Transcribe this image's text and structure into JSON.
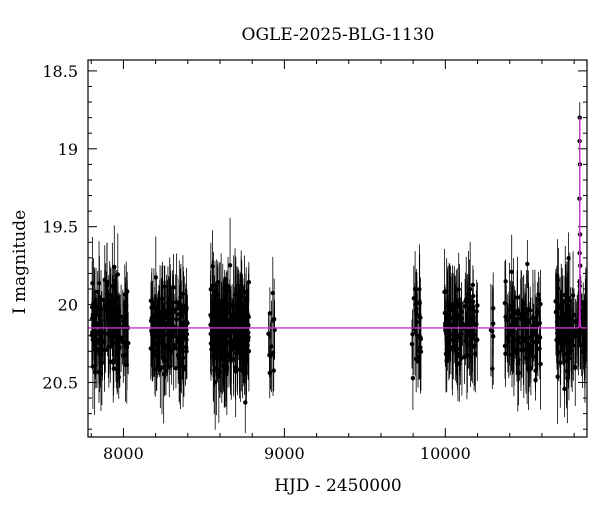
{
  "chart_data": {
    "type": "scatter",
    "title": "OGLE-2025-BLG-1130",
    "xlabel": "HJD - 2450000",
    "ylabel": "I magnitude",
    "xlim": [
      7780,
      10880
    ],
    "ylim": [
      20.85,
      18.43
    ],
    "y_inverted": true,
    "x_ticks": [
      8000,
      9000,
      10000
    ],
    "y_ticks": [
      18.5,
      19,
      19.5,
      20,
      20.5
    ],
    "x_tick_labels": [
      "8000",
      "9000",
      "10000"
    ],
    "y_tick_labels": [
      "18.5",
      "19",
      "19.5",
      "20",
      "20.5"
    ],
    "grid": false,
    "colors": {
      "points": "#000000",
      "model": "#cc33cc"
    },
    "baseline_mag": 20.15,
    "seasons": [
      {
        "start": 7800,
        "end": 8030,
        "count": 150
      },
      {
        "start": 8170,
        "end": 8400,
        "count": 170
      },
      {
        "start": 8540,
        "end": 8780,
        "count": 260
      },
      {
        "start": 8900,
        "end": 8940,
        "count": 12
      },
      {
        "start": 9790,
        "end": 9850,
        "count": 25
      },
      {
        "start": 9990,
        "end": 10200,
        "count": 120
      },
      {
        "start": 10280,
        "end": 10300,
        "count": 6
      },
      {
        "start": 10370,
        "end": 10600,
        "count": 120
      },
      {
        "start": 10680,
        "end": 10875,
        "count": 120
      }
    ],
    "event": {
      "t0": 10835,
      "peak_mag": 18.8,
      "tE": 3,
      "peak_points": [
        {
          "x": 10833,
          "y": 19.32,
          "err": 0.12
        },
        {
          "x": 10834,
          "y": 18.95,
          "err": 0.12
        },
        {
          "x": 10835,
          "y": 18.8,
          "err": 0.1
        },
        {
          "x": 10836,
          "y": 19.1,
          "err": 0.12
        },
        {
          "x": 10837,
          "y": 19.55,
          "err": 0.14
        },
        {
          "x": 10838,
          "y": 19.75,
          "err": 0.15
        }
      ]
    }
  }
}
